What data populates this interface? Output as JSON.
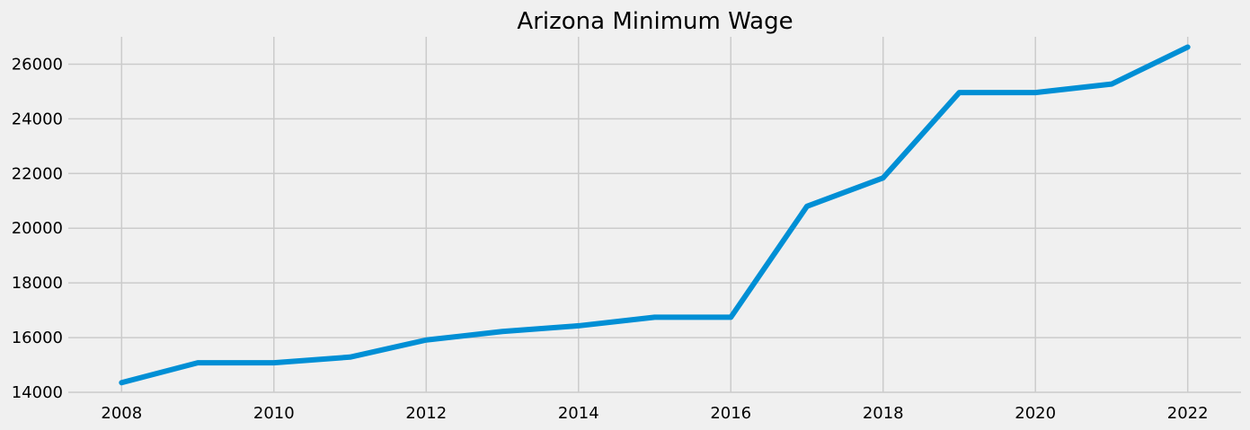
{
  "chart_data": {
    "type": "line",
    "title": "Arizona Minimum Wage",
    "xlabel": "",
    "ylabel": "",
    "x": [
      2008,
      2009,
      2010,
      2011,
      2012,
      2013,
      2014,
      2015,
      2016,
      2017,
      2018,
      2019,
      2020,
      2021,
      2022
    ],
    "series": [
      {
        "values": [
          14352,
          15080,
          15080,
          15288,
          15912,
          16224,
          16432,
          16744,
          16744,
          20800,
          21840,
          24960,
          24960,
          25272,
          26624
        ],
        "color": "#008fd5"
      }
    ],
    "xlim": [
      2007.3,
      2022.7
    ],
    "ylim": [
      14000,
      27000
    ],
    "xticks": [
      2008,
      2010,
      2012,
      2014,
      2016,
      2018,
      2020,
      2022
    ],
    "yticks": [
      14000,
      16000,
      18000,
      20000,
      22000,
      24000,
      26000
    ],
    "grid": true,
    "background": "#f0f0f0",
    "grid_color": "#cbcbcb"
  }
}
